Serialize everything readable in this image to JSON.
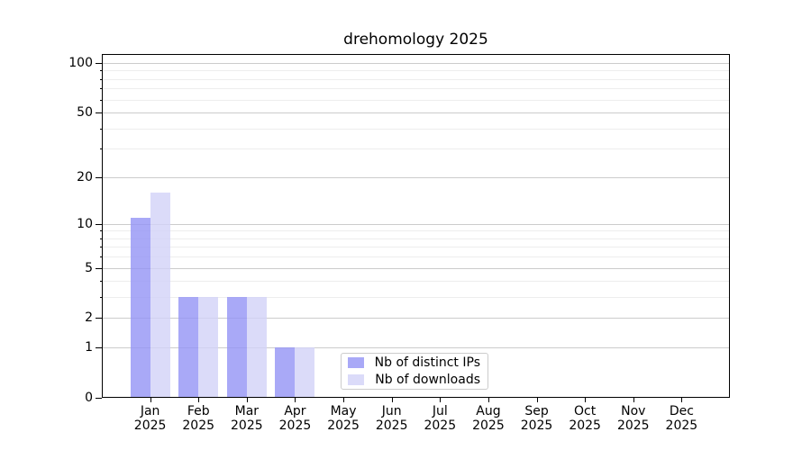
{
  "chart_data": {
    "type": "bar",
    "title": "drehomology 2025",
    "categories": [
      "Jan",
      "Feb",
      "Mar",
      "Apr",
      "May",
      "Jun",
      "Jul",
      "Aug",
      "Sep",
      "Oct",
      "Nov",
      "Dec"
    ],
    "year_label": "2025",
    "series": [
      {
        "name": "Nb of distinct IPs",
        "color": "#9494f5",
        "values": [
          11,
          3,
          3,
          1,
          0,
          0,
          0,
          0,
          0,
          0,
          0,
          0
        ]
      },
      {
        "name": "Nb of downloads",
        "color": "#d2d2f8",
        "values": [
          16,
          3,
          3,
          1,
          0,
          0,
          0,
          0,
          0,
          0,
          0,
          0
        ]
      }
    ],
    "bar_opacity": 0.8,
    "y_ticks": [
      0,
      1,
      2,
      5,
      10,
      20,
      50,
      100
    ],
    "y_minor_ticks": [
      3,
      4,
      6,
      7,
      8,
      9,
      30,
      40,
      60,
      70,
      80,
      90
    ],
    "scale": "log10(value+1)",
    "ylim": [
      0,
      113
    ],
    "xlabel": "",
    "ylabel": "",
    "grid": "on",
    "legend_position": "lower center",
    "colors": {
      "grid_major": "#cccccc",
      "grid_minor": "#ededed",
      "axis": "#000000",
      "text": "#000000",
      "background": "#ffffff",
      "legend_border": "#cccccc"
    }
  }
}
